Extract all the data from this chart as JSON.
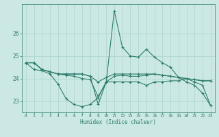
{
  "xlabel": "Humidex (Indice chaleur)",
  "background_color": "#cce8e4",
  "grid_color": "#aad4cc",
  "line_color": "#2e7d6e",
  "xlim": [
    -0.5,
    23.5
  ],
  "ylim": [
    22.5,
    27.3
  ],
  "yticks": [
    23,
    24,
    25,
    26
  ],
  "xticks": [
    0,
    1,
    2,
    3,
    4,
    5,
    6,
    7,
    8,
    9,
    10,
    11,
    12,
    13,
    14,
    15,
    16,
    17,
    18,
    19,
    20,
    21,
    22,
    23
  ],
  "series": [
    [
      24.7,
      24.7,
      24.4,
      24.3,
      24.2,
      24.2,
      24.2,
      24.2,
      24.1,
      22.85,
      23.85,
      27.0,
      25.4,
      25.0,
      24.95,
      25.3,
      24.95,
      24.7,
      24.5,
      24.05,
      23.85,
      23.7,
      23.35,
      22.8
    ],
    [
      24.7,
      24.7,
      24.4,
      24.3,
      24.2,
      24.2,
      24.2,
      24.2,
      24.1,
      23.85,
      24.05,
      24.2,
      24.2,
      24.2,
      24.2,
      24.2,
      24.2,
      24.15,
      24.1,
      24.05,
      24.0,
      23.95,
      23.9,
      23.9
    ],
    [
      24.7,
      24.4,
      24.35,
      24.2,
      23.75,
      23.1,
      22.85,
      22.75,
      22.85,
      23.15,
      23.85,
      23.85,
      23.85,
      23.85,
      23.85,
      23.7,
      23.85,
      23.85,
      23.9,
      23.9,
      24.0,
      23.85,
      23.7,
      22.8
    ],
    [
      24.7,
      24.7,
      24.4,
      24.3,
      24.2,
      24.15,
      24.1,
      24.0,
      23.95,
      23.2,
      23.85,
      24.1,
      24.15,
      24.1,
      24.1,
      24.15,
      24.2,
      24.15,
      24.1,
      24.05,
      24.0,
      23.95,
      23.9,
      23.9
    ]
  ]
}
